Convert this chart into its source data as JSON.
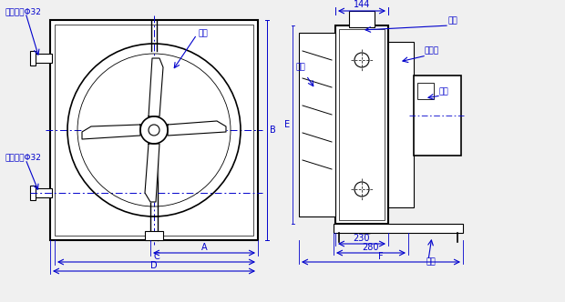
{
  "bg_color": "#f0f0f0",
  "line_color": "#0000cc",
  "dark_line": "#000000",
  "labels": {
    "ye_lun": "叶轮",
    "re_shui_chu": "热水出口Φ32",
    "re_shui_jin": "热水进口Φ32",
    "bai_ye": "百叶",
    "pan_guan": "盘管",
    "ji_feng_qi": "集风器",
    "dian_ji": "电机",
    "zhi_jia": "支架"
  }
}
